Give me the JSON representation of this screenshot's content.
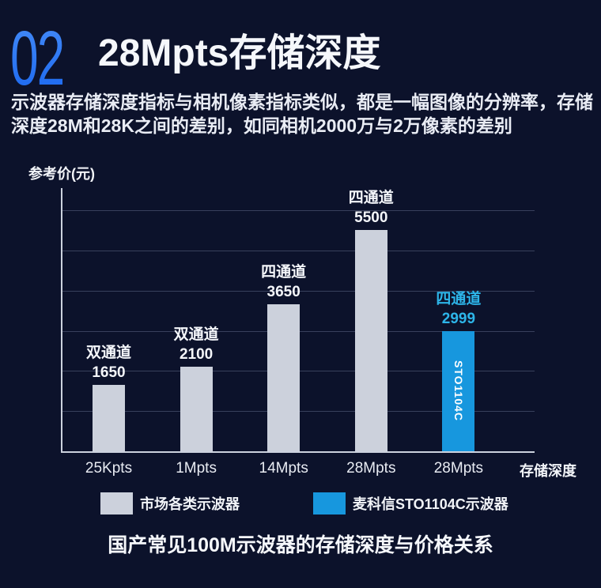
{
  "header": {
    "section_number": "02",
    "title": "28Mpts存储深度",
    "subtitle_line1": "示波器存储深度指标与相机像素指标类似，都是一幅图像的分辨率，存储",
    "subtitle_line2": "深度28M和28K之间的差别，如同相机2000万与2万像素的差别"
  },
  "chart_data": {
    "type": "bar",
    "title": "国产常见100M示波器的存储深度与价格关系",
    "y_axis_title": "参考价(元)",
    "x_axis_title": "存储深度",
    "ylim": [
      0,
      6000
    ],
    "gridline_step": 1000,
    "grid": true,
    "legend_position": "bottom",
    "categories": [
      "25Kpts",
      "1Mpts",
      "14Mpts",
      "28Mpts",
      "28Mpts"
    ],
    "bars": [
      {
        "category": "25Kpts",
        "group": "双通道",
        "value": 1650,
        "series": "市场各类示波器",
        "highlight": false
      },
      {
        "category": "1Mpts",
        "group": "双通道",
        "value": 2100,
        "series": "市场各类示波器",
        "highlight": false
      },
      {
        "category": "14Mpts",
        "group": "四通道",
        "value": 3650,
        "series": "市场各类示波器",
        "highlight": false
      },
      {
        "category": "28Mpts",
        "group": "四通道",
        "value": 5500,
        "series": "市场各类示波器",
        "highlight": false
      },
      {
        "category": "28Mpts",
        "group": "四通道",
        "value": 2999,
        "series": "麦科信STO1104C示波器",
        "inner_label": "STO1104C",
        "highlight": true
      }
    ],
    "legend": [
      {
        "label": "市场各类示波器",
        "color": "#ccd1dc"
      },
      {
        "label": "麦科信STO1104C示波器",
        "color": "#1797de"
      }
    ]
  },
  "colors": {
    "background": "#0c122b",
    "accent_number": "#2e7cf4",
    "bar_gray": "#ccd1dc",
    "bar_blue": "#1797de",
    "highlight_label": "#2db5e9",
    "axis_line": "#ccd2de"
  }
}
